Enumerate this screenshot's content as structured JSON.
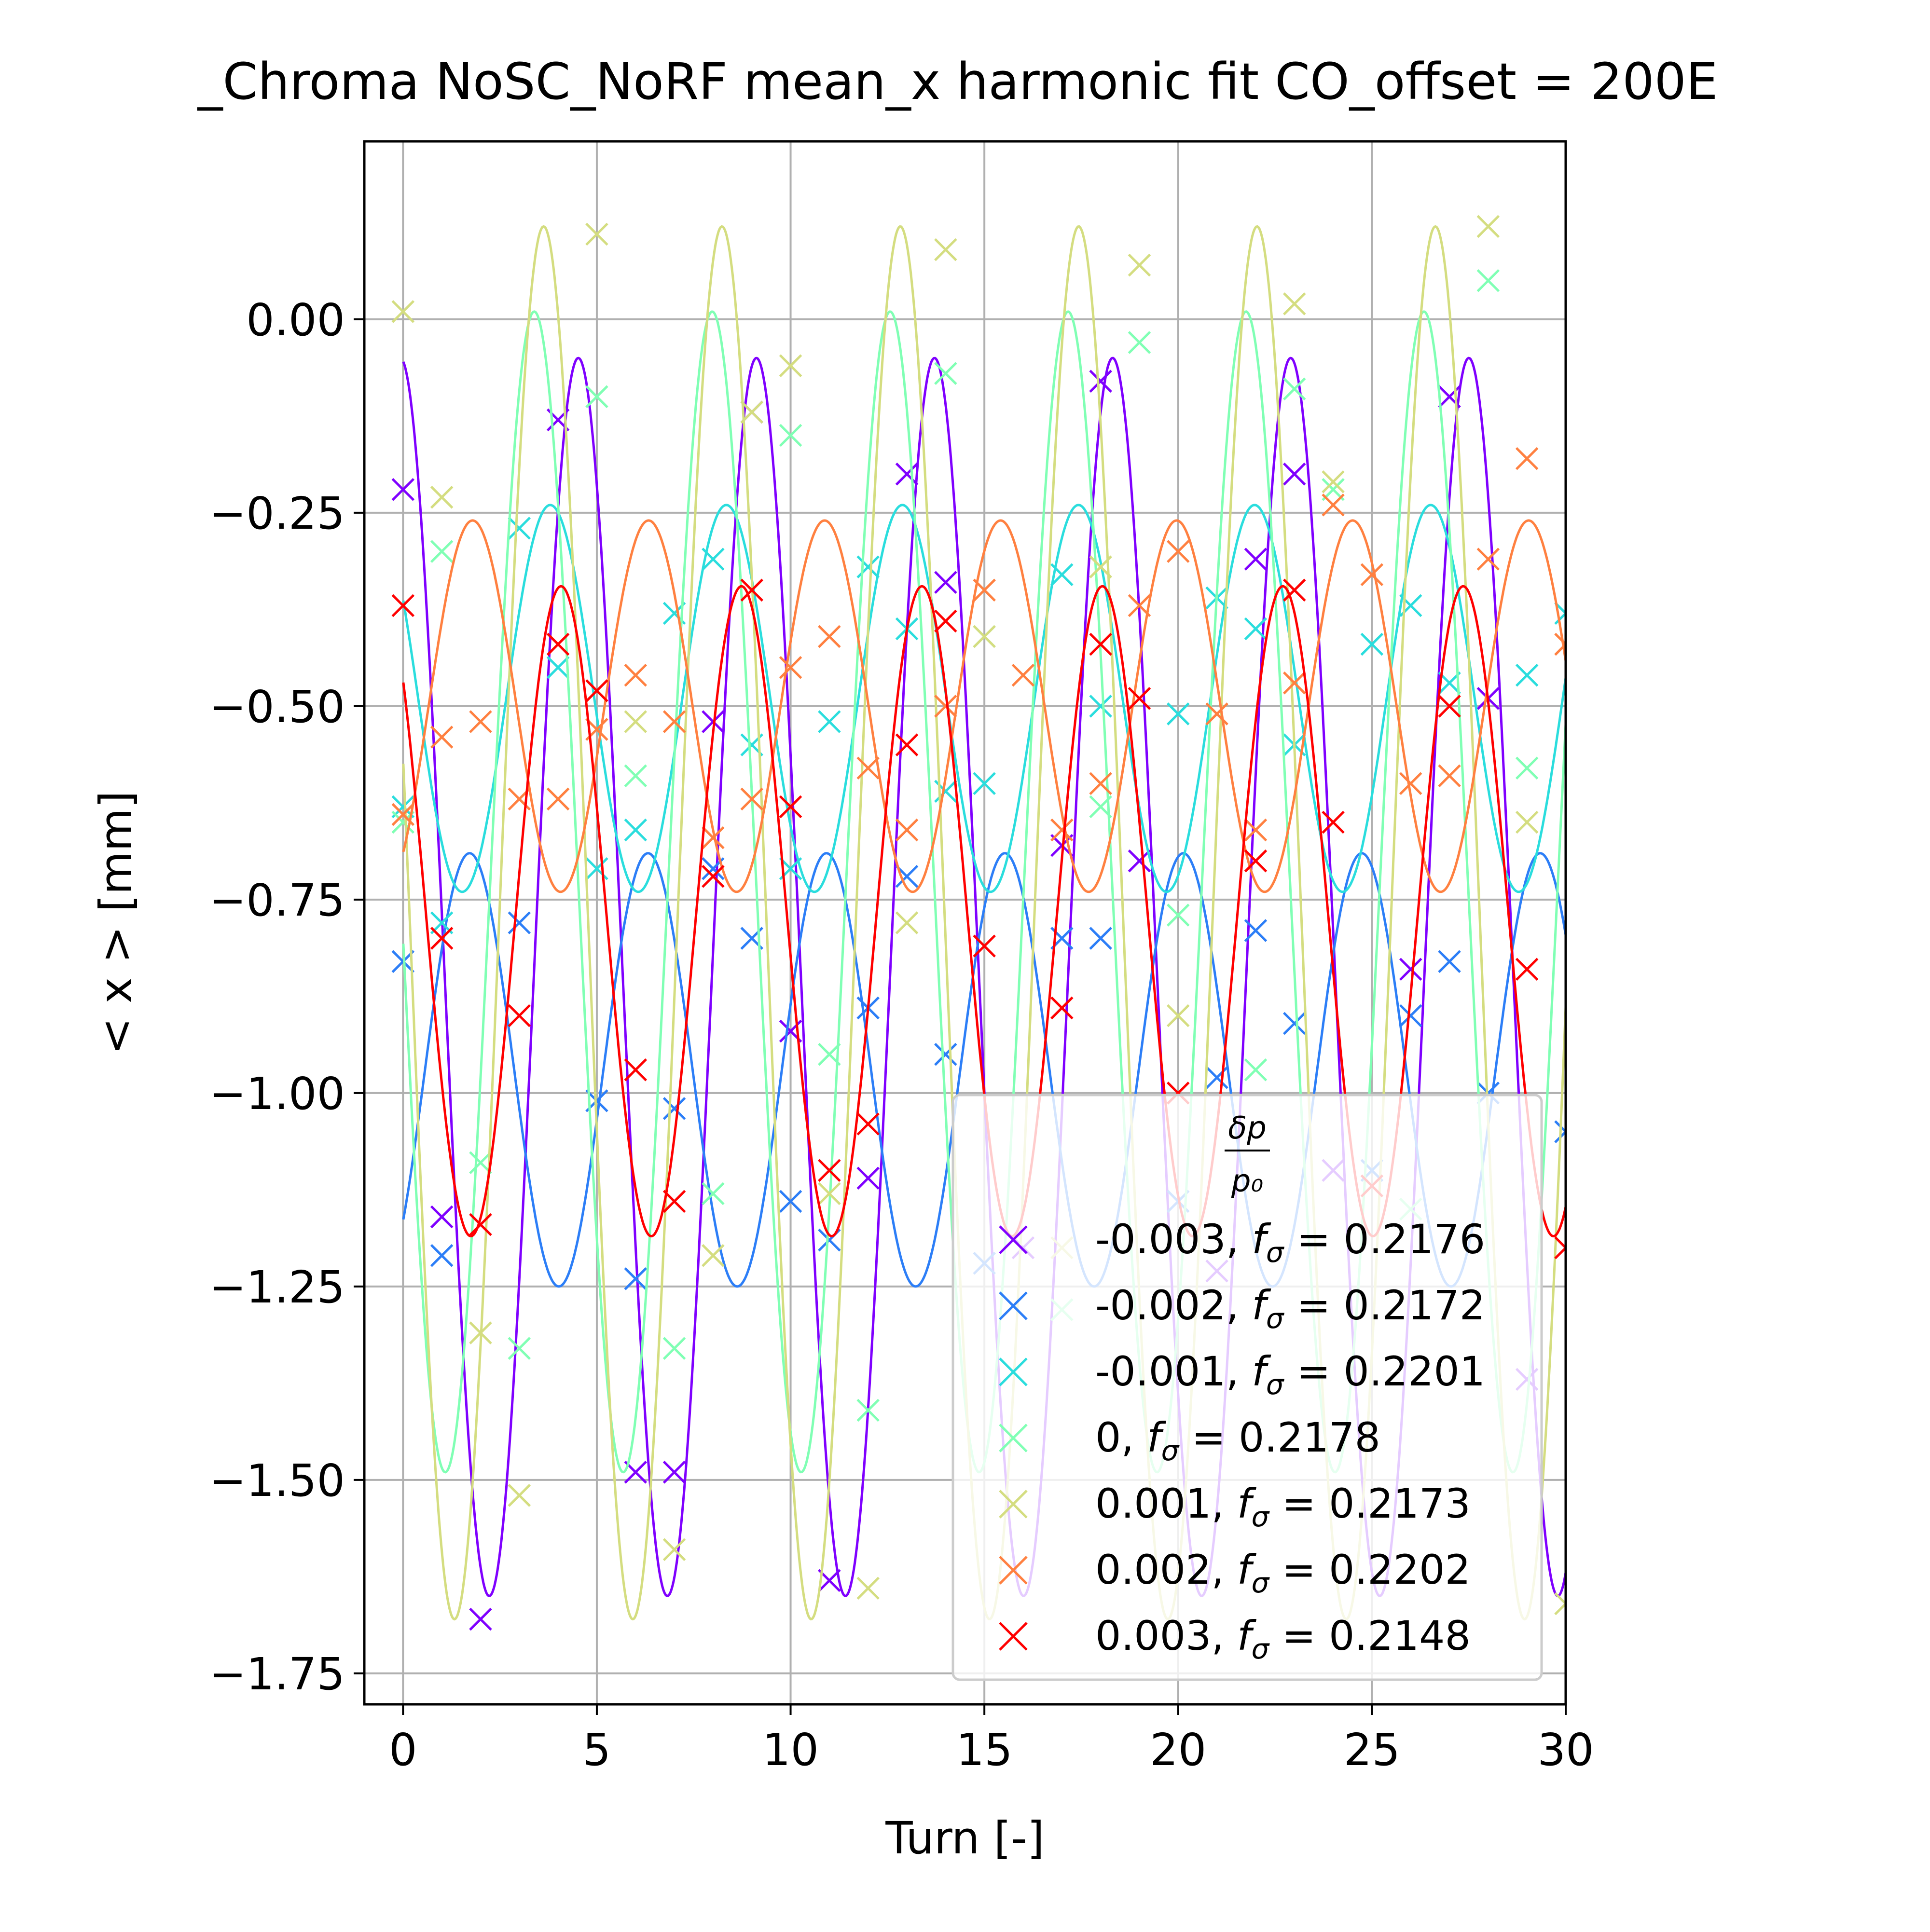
{
  "chart_data": {
    "type": "line",
    "title": "_Chroma NoSC_NoRF mean_x harmonic fit CO_offset = 200E",
    "xlabel": "Turn [-]",
    "ylabel": "< x >  [mm]",
    "xlim": [
      -1,
      30
    ],
    "ylim": [
      -1.79,
      0.23
    ],
    "xticks": [
      "0",
      "5",
      "10",
      "15",
      "20",
      "25",
      "30"
    ],
    "yticks": [
      "0.00",
      "−0.25",
      "−0.50",
      "−0.75",
      "−1.00",
      "−1.25",
      "−1.50",
      "−1.75"
    ],
    "ytick_values": [
      0,
      -0.25,
      -0.5,
      -0.75,
      -1.0,
      -1.25,
      -1.5,
      -1.75
    ],
    "grid": true,
    "legend_title_num": "δp",
    "legend_title_den": "p₀",
    "legend_position": "lower-right",
    "markers": "x",
    "series": [
      {
        "name": "-0.003, fσ = 0.2176",
        "label_value": "-0.003",
        "label_freq": "0.2176",
        "color": "#7f00ff",
        "fit": {
          "mean": -0.85,
          "amp": 0.8,
          "freq": 0.2176,
          "phase": 0.1
        },
        "points": [
          [
            0,
            -0.22
          ],
          [
            1,
            -1.16
          ],
          [
            2,
            -1.68
          ],
          [
            4,
            -0.13
          ],
          [
            6,
            -1.49
          ],
          [
            7,
            -1.49
          ],
          [
            8,
            -0.52
          ],
          [
            9,
            -0.12
          ],
          [
            10,
            -0.92
          ],
          [
            11,
            -1.63
          ],
          [
            12,
            -1.11
          ],
          [
            13,
            -0.2
          ],
          [
            14,
            -0.34
          ],
          [
            16,
            -1.2
          ],
          [
            17,
            -0.68
          ],
          [
            18,
            -0.08
          ],
          [
            19,
            -0.7
          ],
          [
            21,
            -1.23
          ],
          [
            22,
            -0.31
          ],
          [
            23,
            -0.2
          ],
          [
            24,
            -1.1
          ],
          [
            26,
            -0.84
          ],
          [
            27,
            -0.1
          ],
          [
            28,
            -0.49
          ],
          [
            29,
            -1.37
          ]
        ]
      },
      {
        "name": "-0.002, fσ = 0.2172",
        "label_value": "-0.002",
        "label_freq": "0.2172",
        "color": "#2c7ef7",
        "fit": {
          "mean": -0.97,
          "amp": 0.28,
          "freq": 0.2172,
          "phase": 3.94
        },
        "points": [
          [
            0,
            -0.83
          ],
          [
            1,
            -1.21
          ],
          [
            3,
            -0.78
          ],
          [
            5,
            -1.01
          ],
          [
            6,
            -1.24
          ],
          [
            7,
            -1.02
          ],
          [
            8,
            -0.71
          ],
          [
            9,
            -0.8
          ],
          [
            10,
            -1.14
          ],
          [
            11,
            -1.19
          ],
          [
            12,
            -0.89
          ],
          [
            13,
            -0.72
          ],
          [
            14,
            -0.95
          ],
          [
            15,
            -1.22
          ],
          [
            17,
            -0.8
          ],
          [
            18,
            -0.8
          ],
          [
            20,
            -1.14
          ],
          [
            21,
            -0.98
          ],
          [
            22,
            -0.79
          ],
          [
            23,
            -0.91
          ],
          [
            25,
            -1.1
          ],
          [
            26,
            -0.9
          ],
          [
            27,
            -0.83
          ],
          [
            28,
            -1.0
          ],
          [
            30,
            -1.05
          ]
        ]
      },
      {
        "name": "-0.001, fσ = 0.2201",
        "label_value": "-0.001",
        "label_freq": "0.2201",
        "color": "#2adddd",
        "fit": {
          "mean": -0.49,
          "amp": 0.25,
          "freq": 0.2201,
          "phase": 1.03
        },
        "points": [
          [
            0,
            -0.63
          ],
          [
            1,
            -0.78
          ],
          [
            3,
            -0.27
          ],
          [
            4,
            -0.45
          ],
          [
            5,
            -0.71
          ],
          [
            6,
            -0.66
          ],
          [
            7,
            -0.38
          ],
          [
            8,
            -0.31
          ],
          [
            9,
            -0.55
          ],
          [
            10,
            -0.71
          ],
          [
            11,
            -0.52
          ],
          [
            12,
            -0.32
          ],
          [
            13,
            -0.4
          ],
          [
            14,
            -0.61
          ],
          [
            15,
            -0.6
          ],
          [
            17,
            -0.33
          ],
          [
            18,
            -0.5
          ],
          [
            20,
            -0.51
          ],
          [
            21,
            -0.36
          ],
          [
            22,
            -0.4
          ],
          [
            23,
            -0.55
          ],
          [
            25,
            -0.42
          ],
          [
            26,
            -0.37
          ],
          [
            27,
            -0.47
          ],
          [
            29,
            -0.46
          ],
          [
            30,
            -0.38
          ]
        ]
      },
      {
        "name": "0, fσ = 0.2178",
        "label_value": "0",
        "label_freq": "0.2178",
        "color": "#80ffb4",
        "fit": {
          "mean": -0.74,
          "amp": 0.75,
          "freq": 0.2178,
          "phase": 1.65
        },
        "points": [
          [
            0,
            -0.65
          ],
          [
            1,
            -0.3
          ],
          [
            2,
            -1.09
          ],
          [
            3,
            -1.33
          ],
          [
            5,
            -0.1
          ],
          [
            6,
            -0.59
          ],
          [
            7,
            -1.33
          ],
          [
            8,
            -1.13
          ],
          [
            10,
            -0.15
          ],
          [
            11,
            -0.95
          ],
          [
            12,
            -1.41
          ],
          [
            14,
            -0.07
          ],
          [
            15,
            -0.41
          ],
          [
            17,
            -1.28
          ],
          [
            18,
            -0.63
          ],
          [
            19,
            -0.03
          ],
          [
            20,
            -0.77
          ],
          [
            22,
            -0.97
          ],
          [
            23,
            -0.09
          ],
          [
            24,
            -0.22
          ],
          [
            26,
            -1.15
          ],
          [
            28,
            0.05
          ],
          [
            29,
            -0.58
          ]
        ]
      },
      {
        "name": "0.001, fσ = 0.2173",
        "label_value": "0.001",
        "label_freq": "0.2173",
        "color": "#d4dd80",
        "fit": {
          "mean": -0.78,
          "amp": 0.9,
          "freq": 0.2173,
          "phase": 1.33
        },
        "points": [
          [
            0,
            0.01
          ],
          [
            1,
            -0.23
          ],
          [
            2,
            -1.31
          ],
          [
            3,
            -1.52
          ],
          [
            4,
            -0.62
          ],
          [
            5,
            0.11
          ],
          [
            6,
            -0.52
          ],
          [
            7,
            -1.59
          ],
          [
            8,
            -1.21
          ],
          [
            9,
            -0.12
          ],
          [
            10,
            -0.06
          ],
          [
            11,
            -1.13
          ],
          [
            12,
            -1.64
          ],
          [
            13,
            -0.78
          ],
          [
            14,
            0.09
          ],
          [
            15,
            -0.41
          ],
          [
            17,
            -1.2
          ],
          [
            18,
            -0.32
          ],
          [
            19,
            0.07
          ],
          [
            20,
            -0.9
          ],
          [
            23,
            0.02
          ],
          [
            24,
            -0.21
          ],
          [
            28,
            0.12
          ],
          [
            29,
            -0.65
          ],
          [
            30,
            -1.66
          ]
        ]
      },
      {
        "name": "0.002, fσ = 0.2202",
        "label_value": "0.002",
        "label_freq": "0.2202",
        "color": "#ff8040",
        "fit": {
          "mean": -0.5,
          "amp": 0.24,
          "freq": 0.2202,
          "phase": 3.8
        },
        "points": [
          [
            0,
            -0.64
          ],
          [
            1,
            -0.54
          ],
          [
            2,
            -0.52
          ],
          [
            3,
            -0.62
          ],
          [
            4,
            -0.62
          ],
          [
            5,
            -0.53
          ],
          [
            6,
            -0.46
          ],
          [
            7,
            -0.52
          ],
          [
            8,
            -0.67
          ],
          [
            9,
            -0.62
          ],
          [
            10,
            -0.45
          ],
          [
            11,
            -0.41
          ],
          [
            12,
            -0.58
          ],
          [
            13,
            -0.66
          ],
          [
            14,
            -0.5
          ],
          [
            15,
            -0.35
          ],
          [
            16,
            -0.46
          ],
          [
            17,
            -0.66
          ],
          [
            18,
            -0.6
          ],
          [
            19,
            -0.37
          ],
          [
            20,
            -0.3
          ],
          [
            21,
            -0.51
          ],
          [
            22,
            -0.66
          ],
          [
            23,
            -0.47
          ],
          [
            24,
            -0.24
          ],
          [
            25,
            -0.33
          ],
          [
            26,
            -0.6
          ],
          [
            27,
            -0.59
          ],
          [
            28,
            -0.31
          ],
          [
            29,
            -0.18
          ],
          [
            30,
            -0.42
          ]
        ]
      },
      {
        "name": "0.003, fσ = 0.2148",
        "label_value": "0.003",
        "label_freq": "0.2148",
        "color": "#ff0000",
        "fit": {
          "mean": -0.765,
          "amp": 0.42,
          "freq": 0.2148,
          "phase": 0.78
        },
        "points": [
          [
            0,
            -0.37
          ],
          [
            1,
            -0.8
          ],
          [
            2,
            -1.17
          ],
          [
            3,
            -0.9
          ],
          [
            4,
            -0.42
          ],
          [
            5,
            -0.48
          ],
          [
            6,
            -0.97
          ],
          [
            7,
            -1.14
          ],
          [
            8,
            -0.72
          ],
          [
            9,
            -0.35
          ],
          [
            10,
            -0.63
          ],
          [
            11,
            -1.1
          ],
          [
            12,
            -1.04
          ],
          [
            13,
            -0.55
          ],
          [
            14,
            -0.39
          ],
          [
            15,
            -0.81
          ],
          [
            17,
            -0.89
          ],
          [
            18,
            -0.42
          ],
          [
            19,
            -0.49
          ],
          [
            20,
            -1.0
          ],
          [
            22,
            -0.7
          ],
          [
            23,
            -0.35
          ],
          [
            24,
            -0.65
          ],
          [
            25,
            -1.12
          ],
          [
            27,
            -0.5
          ],
          [
            29,
            -0.84
          ],
          [
            30,
            -1.2
          ]
        ]
      }
    ]
  }
}
